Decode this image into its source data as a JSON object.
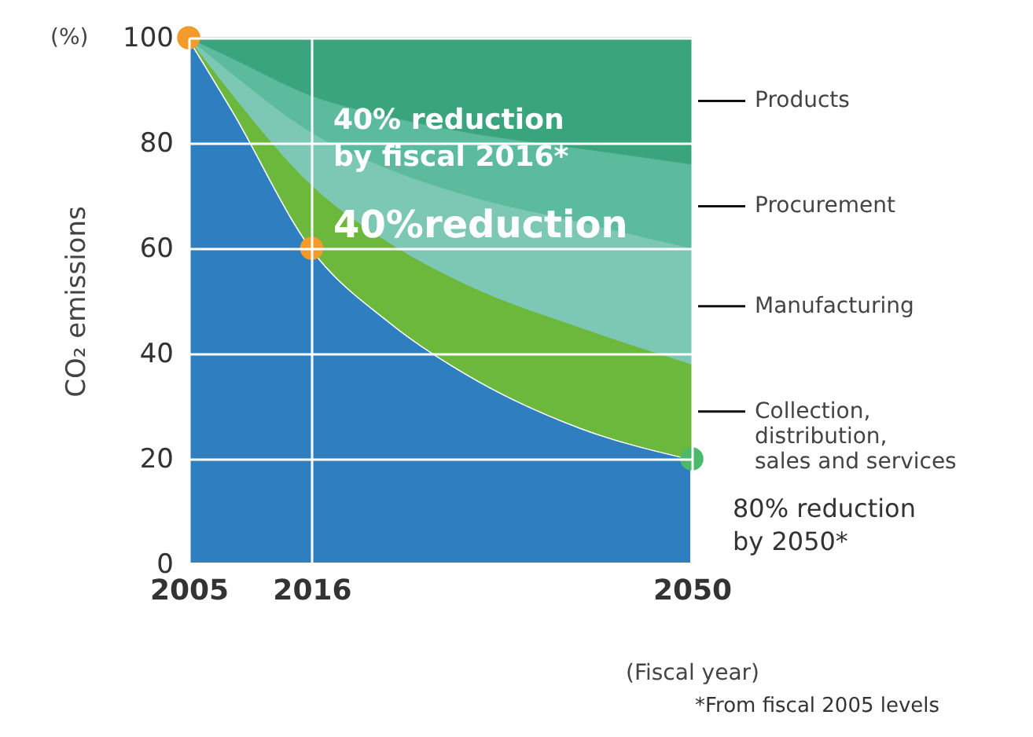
{
  "chart_data": {
    "type": "area",
    "stacked": true,
    "x": [
      2005,
      2009,
      2016,
      2023,
      2030,
      2040,
      2050
    ],
    "xlim": [
      2005,
      2050
    ],
    "xticks": [
      2005,
      2016,
      2050
    ],
    "ylim": [
      0,
      100
    ],
    "yticks": [
      0,
      20,
      40,
      60,
      80,
      100
    ],
    "grid": true,
    "legend": false,
    "ylabel": "CO₂ emissions",
    "xlabel": "(Fiscal year)",
    "series": [
      {
        "color": "#2f7fc0",
        "values": [
          100,
          86,
          60,
          46,
          36,
          26,
          20
        ]
      },
      {
        "name": "Collection,\ndistribution,\nsales and services",
        "color": "#6cb83c",
        "values": [
          0,
          3,
          12,
          15,
          17,
          19,
          18
        ]
      },
      {
        "name": "Manufacturing",
        "color": "#7dc8b4",
        "values": [
          0,
          4,
          10,
          14,
          17,
          20,
          22
        ]
      },
      {
        "name": "Procurement",
        "color": "#5bbb9c",
        "values": [
          0,
          3,
          7,
          10,
          12,
          14,
          16
        ]
      },
      {
        "name": "Products",
        "color": "#3aa47e",
        "values": [
          0,
          4,
          11,
          15,
          18,
          21,
          24
        ]
      },
      {
        "type": "scatter",
        "marker": "circle",
        "x": [
          2005,
          2016,
          2050
        ],
        "values": [
          100,
          60,
          20
        ],
        "colors": [
          "#f39a2b",
          "#f39a2b",
          "#4cb86a"
        ]
      }
    ],
    "annotations": [
      "(%)",
      "40% reduction\nby fiscal 2016*",
      "40%reduction",
      "80% reduction\nby 2050*",
      "*From fiscal 2005 levels"
    ]
  }
}
